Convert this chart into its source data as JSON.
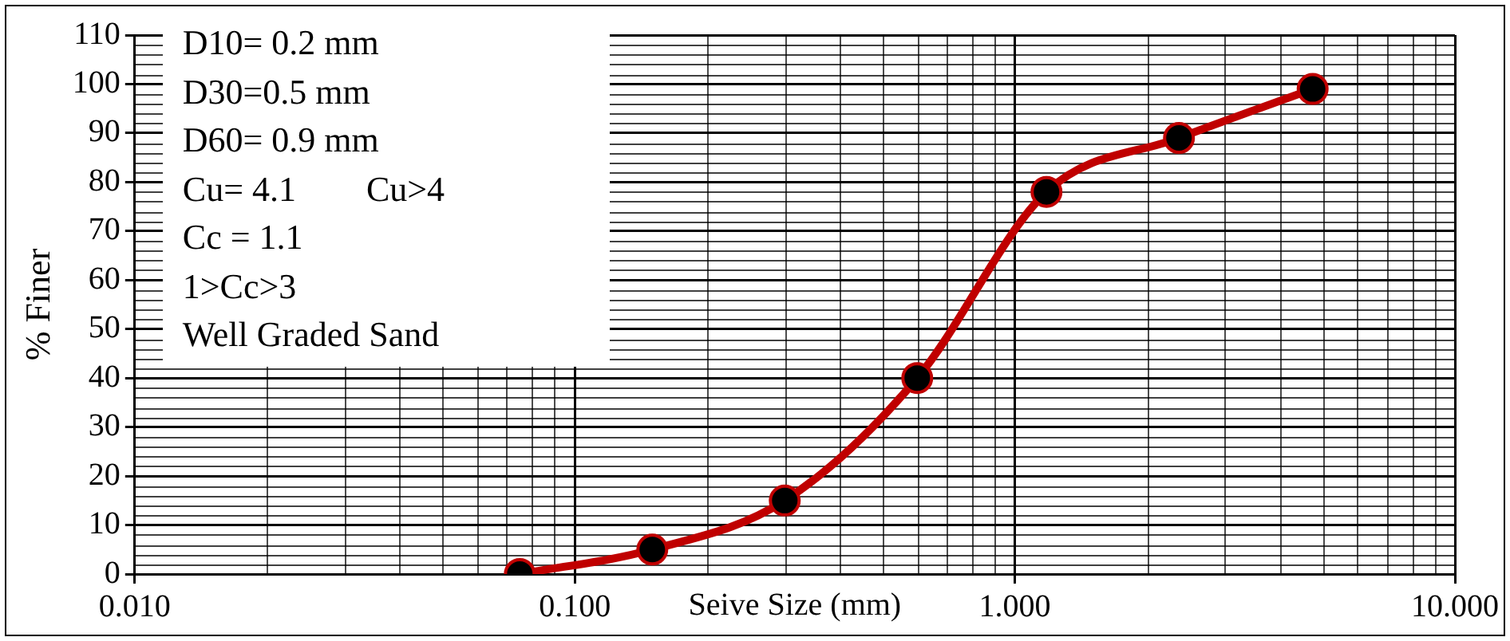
{
  "chart_data": {
    "type": "line",
    "xlabel": "Seive Size (mm)",
    "ylabel": "% Finer",
    "x": [
      0.075,
      0.15,
      0.3,
      0.6,
      1.18,
      2.36,
      4.75
    ],
    "series": [
      {
        "color": "#c00000",
        "values": [
          0,
          5,
          15,
          40,
          78,
          89,
          99
        ]
      }
    ],
    "log": "x",
    "xlim": [
      0.01,
      10
    ],
    "xticks": [
      {
        "value": 0.01,
        "label": "0.010"
      },
      {
        "value": 0.1,
        "label": "0.100"
      },
      {
        "value": 1,
        "label": "1.000"
      },
      {
        "value": 10,
        "label": "10.000"
      }
    ],
    "ylim": [
      0,
      110
    ],
    "yticks": [
      0,
      10,
      20,
      30,
      40,
      50,
      60,
      70,
      80,
      90,
      100,
      110
    ],
    "grid": true,
    "legend": false,
    "marker": "circle",
    "line_style": "solid",
    "annotations": [
      "D10= 0.2 mm",
      "D30=0.5 mm",
      "D60= 0.9 mm",
      "Cu= 4.1        Cu>4",
      "Cc = 1.1",
      "1>Cc>3",
      "Well Graded Sand"
    ]
  }
}
